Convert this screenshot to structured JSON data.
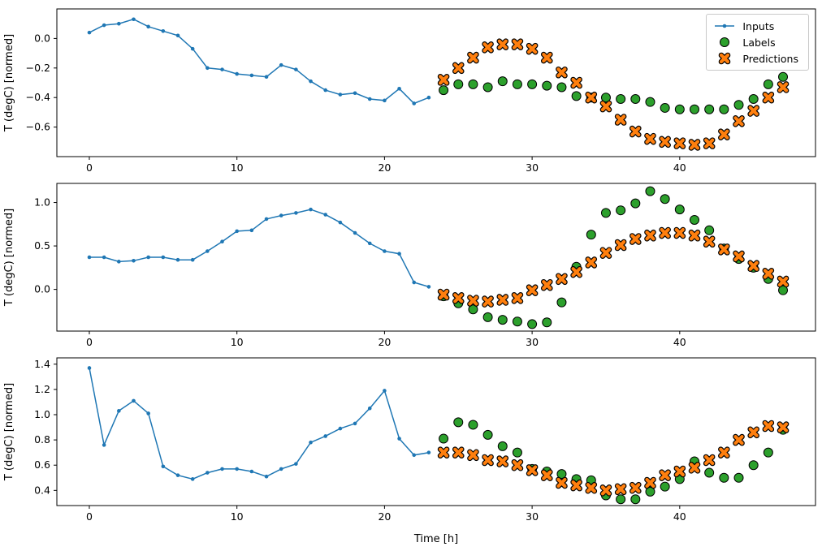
{
  "figure": {
    "background_color": "#ffffff",
    "axes_edge_color": "#000000"
  },
  "legend": {
    "position": "upper right",
    "entries": [
      "Inputs",
      "Labels",
      "Predictions"
    ]
  },
  "chart_data": [
    {
      "type": "line",
      "title": "",
      "xlabel": "",
      "ylabel": "T (degC) [normed]",
      "xlim": [
        -2.2,
        49.2
      ],
      "ylim": [
        -0.8,
        0.2
      ],
      "xticks": [
        0,
        10,
        20,
        30,
        40
      ],
      "yticks": [
        0.0,
        -0.2,
        -0.4,
        -0.6
      ],
      "grid": false,
      "legend_visible": true,
      "series": [
        {
          "name": "Inputs",
          "type": "line",
          "marker": "dot",
          "color": "#1f77b4",
          "x_start": 0,
          "values": [
            0.04,
            0.09,
            0.1,
            0.13,
            0.08,
            0.05,
            0.02,
            -0.07,
            -0.2,
            -0.21,
            -0.24,
            -0.25,
            -0.26,
            -0.18,
            -0.21,
            -0.29,
            -0.35,
            -0.38,
            -0.37,
            -0.41,
            -0.42,
            -0.34,
            -0.44,
            -0.4
          ]
        },
        {
          "name": "Labels",
          "type": "scatter",
          "marker": "circle",
          "color": "#2ca02c",
          "edge_color": "#000000",
          "x_start": 24,
          "values": [
            -0.35,
            -0.31,
            -0.31,
            -0.33,
            -0.29,
            -0.31,
            -0.31,
            -0.32,
            -0.33,
            -0.39,
            -0.4,
            -0.4,
            -0.41,
            -0.41,
            -0.43,
            -0.47,
            -0.48,
            -0.48,
            -0.48,
            -0.48,
            -0.45,
            -0.41,
            -0.31,
            -0.26
          ]
        },
        {
          "name": "Predictions",
          "type": "scatter",
          "marker": "X",
          "color": "#ff7f0e",
          "edge_color": "#000000",
          "x_start": 24,
          "values": [
            -0.28,
            -0.2,
            -0.13,
            -0.06,
            -0.04,
            -0.04,
            -0.07,
            -0.13,
            -0.23,
            -0.3,
            -0.4,
            -0.46,
            -0.55,
            -0.63,
            -0.68,
            -0.7,
            -0.71,
            -0.72,
            -0.71,
            -0.65,
            -0.56,
            -0.49,
            -0.4,
            -0.33
          ]
        }
      ]
    },
    {
      "type": "line",
      "title": "",
      "xlabel": "",
      "ylabel": "T (degC) [normed]",
      "xlim": [
        -2.2,
        49.2
      ],
      "ylim": [
        -0.48,
        1.22
      ],
      "xticks": [
        0,
        10,
        20,
        30,
        40
      ],
      "yticks": [
        0.0,
        0.5,
        1.0
      ],
      "grid": false,
      "legend_visible": false,
      "series": [
        {
          "name": "Inputs",
          "type": "line",
          "marker": "dot",
          "color": "#1f77b4",
          "x_start": 0,
          "values": [
            0.37,
            0.37,
            0.32,
            0.33,
            0.37,
            0.37,
            0.34,
            0.34,
            0.44,
            0.55,
            0.67,
            0.68,
            0.81,
            0.85,
            0.88,
            0.92,
            0.86,
            0.77,
            0.65,
            0.53,
            0.44,
            0.41,
            0.08,
            0.03
          ]
        },
        {
          "name": "Labels",
          "type": "scatter",
          "marker": "circle",
          "color": "#2ca02c",
          "edge_color": "#000000",
          "x_start": 24,
          "values": [
            -0.08,
            -0.16,
            -0.23,
            -0.32,
            -0.35,
            -0.37,
            -0.4,
            -0.38,
            -0.15,
            0.26,
            0.63,
            0.88,
            0.91,
            0.99,
            1.13,
            1.04,
            0.92,
            0.8,
            0.68,
            0.47,
            0.35,
            0.25,
            0.12,
            -0.01
          ]
        },
        {
          "name": "Predictions",
          "type": "scatter",
          "marker": "X",
          "color": "#ff7f0e",
          "edge_color": "#000000",
          "x_start": 24,
          "values": [
            -0.06,
            -0.1,
            -0.13,
            -0.14,
            -0.12,
            -0.1,
            -0.01,
            0.05,
            0.12,
            0.2,
            0.31,
            0.42,
            0.51,
            0.58,
            0.62,
            0.65,
            0.65,
            0.62,
            0.55,
            0.46,
            0.38,
            0.27,
            0.18,
            0.09
          ]
        }
      ]
    },
    {
      "type": "line",
      "title": "",
      "xlabel": "Time [h]",
      "ylabel": "T (degC) [normed]",
      "xlim": [
        -2.2,
        49.2
      ],
      "ylim": [
        0.28,
        1.45
      ],
      "xticks": [
        0,
        10,
        20,
        30,
        40
      ],
      "yticks": [
        0.4,
        0.6,
        0.8,
        1.0,
        1.2,
        1.4
      ],
      "grid": false,
      "legend_visible": false,
      "series": [
        {
          "name": "Inputs",
          "type": "line",
          "marker": "dot",
          "color": "#1f77b4",
          "x_start": 0,
          "values": [
            1.37,
            0.76,
            1.03,
            1.11,
            1.01,
            0.59,
            0.52,
            0.49,
            0.54,
            0.57,
            0.57,
            0.55,
            0.51,
            0.57,
            0.61,
            0.78,
            0.83,
            0.89,
            0.93,
            1.05,
            1.19,
            0.81,
            0.68,
            0.7
          ]
        },
        {
          "name": "Labels",
          "type": "scatter",
          "marker": "circle",
          "color": "#2ca02c",
          "edge_color": "#000000",
          "x_start": 24,
          "values": [
            0.81,
            0.94,
            0.92,
            0.84,
            0.75,
            0.7,
            0.57,
            0.55,
            0.53,
            0.49,
            0.48,
            0.36,
            0.33,
            0.33,
            0.39,
            0.43,
            0.49,
            0.63,
            0.54,
            0.5,
            0.5,
            0.6,
            0.7,
            0.88
          ]
        },
        {
          "name": "Predictions",
          "type": "scatter",
          "marker": "X",
          "color": "#ff7f0e",
          "edge_color": "#000000",
          "x_start": 24,
          "values": [
            0.7,
            0.7,
            0.68,
            0.64,
            0.63,
            0.6,
            0.56,
            0.52,
            0.46,
            0.44,
            0.42,
            0.4,
            0.41,
            0.42,
            0.46,
            0.52,
            0.55,
            0.58,
            0.64,
            0.7,
            0.8,
            0.86,
            0.91,
            0.9
          ]
        }
      ]
    }
  ]
}
